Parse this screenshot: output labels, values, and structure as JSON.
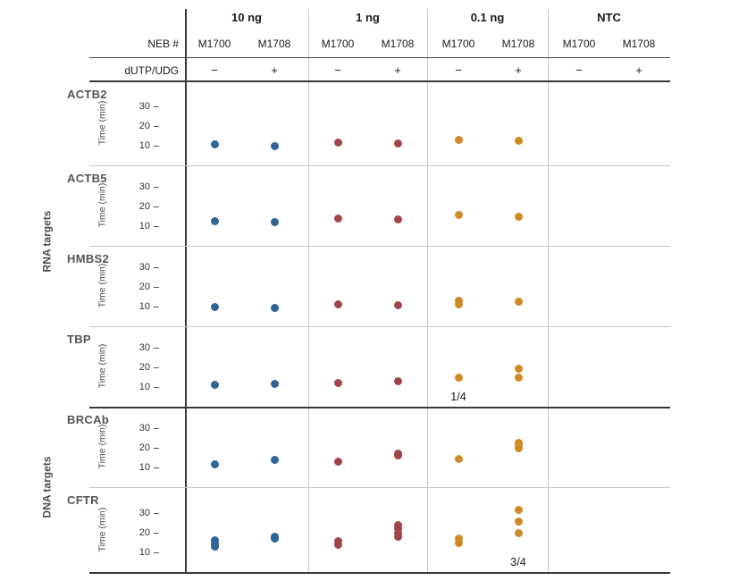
{
  "colors": {
    "blue": "#2e6496",
    "red": "#a1454d",
    "orange": "#cf8a25"
  },
  "header": {
    "neb_label": "NEB #",
    "dutp_label": "dUTP/UDG",
    "groups": [
      {
        "label": "10 ng"
      },
      {
        "label": "1 ng"
      },
      {
        "label": "0.1 ng"
      },
      {
        "label": "NTC"
      }
    ],
    "neb_columns": [
      "M1700",
      "M1708",
      "M1700",
      "M1708",
      "M1700",
      "M1708",
      "M1700",
      "M1708"
    ],
    "dutp_values": [
      "−",
      "+",
      "−",
      "+",
      "−",
      "+",
      "−",
      "+"
    ]
  },
  "side_labels": {
    "rna": "RNA targets",
    "dna": "DNA targets"
  },
  "axis": {
    "label": "Time (min)",
    "tick_bottom": "10",
    "tick_mid": "20",
    "tick_top": "30"
  },
  "chart_data": {
    "type": "scatter",
    "ylabel": "Time (min)",
    "yticks": [
      10,
      20,
      30
    ],
    "ylim": [
      0,
      40
    ],
    "column_groups": [
      "10 ng",
      "1 ng",
      "0.1 ng",
      "NTC"
    ],
    "columns": [
      "10 ng / M1700 / −",
      "10 ng / M1708 / +",
      "1 ng / M1700 / −",
      "1 ng / M1708 / +",
      "0.1 ng / M1700 / −",
      "0.1 ng / M1708 / +",
      "NTC / M1700 / −",
      "NTC / M1708 / +"
    ],
    "column_colors": [
      "blue",
      "blue",
      "red",
      "red",
      "orange",
      "orange",
      "blue",
      "blue"
    ],
    "rows": [
      {
        "target": "ACTB2",
        "group": "RNA targets",
        "values": [
          [
            10.5
          ],
          [
            10
          ],
          [
            11.5
          ],
          [
            11
          ],
          [
            13
          ],
          [
            12.5
          ],
          [],
          []
        ],
        "annotations": [
          "",
          "",
          "",
          "",
          "",
          "",
          "",
          ""
        ]
      },
      {
        "target": "ACTB5",
        "group": "RNA targets",
        "values": [
          [
            12.5
          ],
          [
            12
          ],
          [
            14
          ],
          [
            13.5
          ],
          [
            15.5
          ],
          [
            15
          ],
          [],
          []
        ],
        "annotations": [
          "",
          "",
          "",
          "",
          "",
          "",
          "",
          ""
        ]
      },
      {
        "target": "HMBS2",
        "group": "RNA targets",
        "values": [
          [
            10
          ],
          [
            9.5
          ],
          [
            11
          ],
          [
            10.5
          ],
          [
            11,
            13
          ],
          [
            12.5
          ],
          [],
          []
        ],
        "annotations": [
          "",
          "",
          "",
          "",
          "",
          "",
          "",
          ""
        ]
      },
      {
        "target": "TBP",
        "group": "RNA targets",
        "values": [
          [
            11
          ],
          [
            11.5
          ],
          [
            12
          ],
          [
            13
          ],
          [
            15
          ],
          [
            15,
            19.5
          ],
          [],
          []
        ],
        "annotations": [
          "",
          "",
          "",
          "",
          "1/4",
          "",
          "",
          ""
        ]
      },
      {
        "target": "BRCAb",
        "group": "DNA targets",
        "values": [
          [
            11.5
          ],
          [
            14
          ],
          [
            13
          ],
          [
            16,
            17
          ],
          [
            14.5
          ],
          [
            20,
            21.5,
            22.5
          ],
          [],
          []
        ],
        "annotations": [
          "",
          "",
          "",
          "",
          "",
          "",
          "",
          ""
        ]
      },
      {
        "target": "CFTR",
        "group": "DNA targets",
        "values": [
          [
            13,
            14.5,
            16
          ],
          [
            17,
            18
          ],
          [
            14,
            15.5
          ],
          [
            18,
            20,
            22,
            24
          ],
          [
            15,
            17
          ],
          [
            20,
            25.5,
            31.5
          ],
          [],
          []
        ],
        "annotations": [
          "",
          "",
          "",
          "",
          "",
          "3/4",
          "",
          ""
        ]
      }
    ]
  }
}
